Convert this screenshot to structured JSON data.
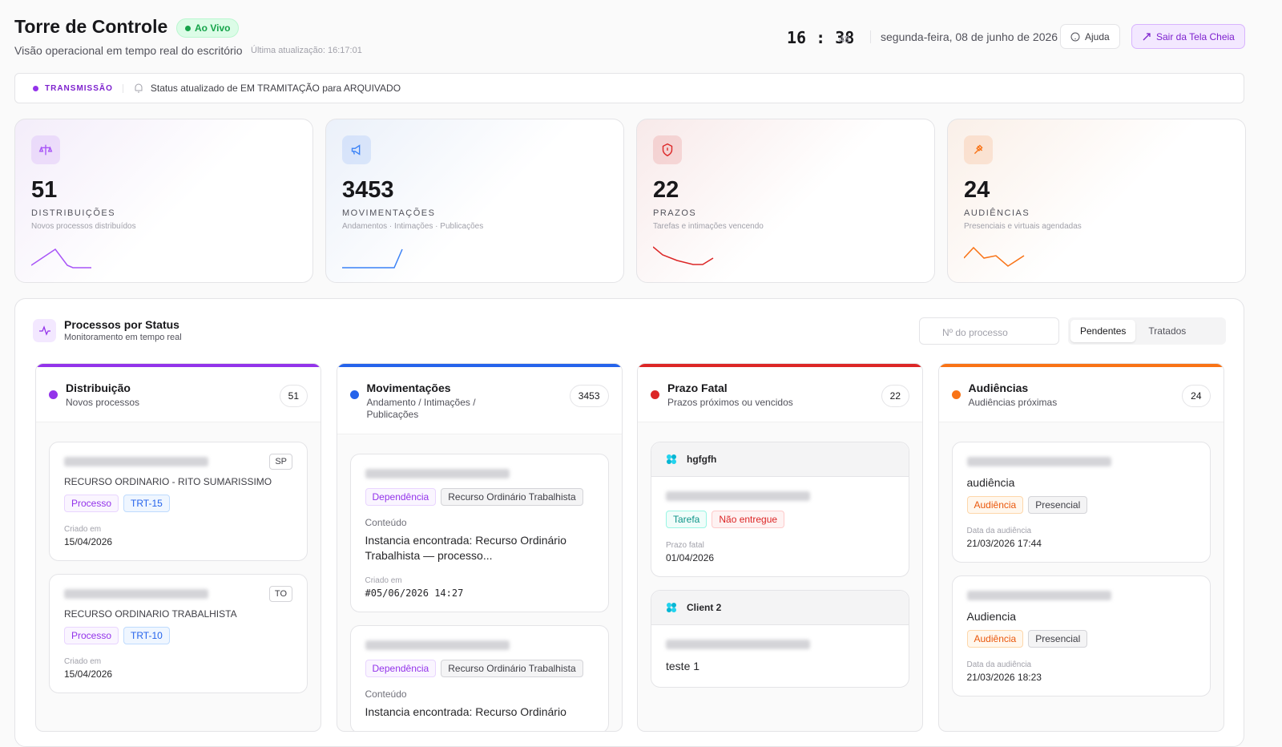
{
  "header": {
    "title": "Torre de Controle",
    "live": "Ao Vivo",
    "subtitle": "Visão operacional em tempo real do escritório",
    "last_update": "Última atualização: 16:17:01",
    "clock_hm": "16 : 38",
    "clock_s": "48",
    "date": "segunda-feira, 08 de junho de 2026",
    "help": "Ajuda",
    "exit_fullscreen": "Sair da Tela Cheia"
  },
  "ticker": {
    "label": "TRANSMISSÃO",
    "message": "Status atualizado de EM TRAMITAÇÃO para ARQUIVADO"
  },
  "stats": [
    {
      "value": 51,
      "label": "DISTRIBUIÇÕES",
      "desc": "Novos processos distribuídos",
      "color": "#a855f7"
    },
    {
      "value": 3453,
      "label": "MOVIMENTAÇÕES",
      "desc": "Andamentos · Intimações · Publicações",
      "color": "#3b82f6"
    },
    {
      "value": 22,
      "label": "PRAZOS",
      "desc": "Tarefas e intimações vencendo",
      "color": "#dc2626"
    },
    {
      "value": 24,
      "label": "AUDIÊNCIAS",
      "desc": "Presenciais e virtuais agendadas",
      "color": "#f97316"
    }
  ],
  "board": {
    "title": "Processos por Status",
    "subtitle": "Monitoramento em tempo real",
    "search_placeholder": "Nº do processo",
    "tabs": [
      "Pendentes",
      "Tratados"
    ],
    "columns": [
      {
        "title": "Distribuição",
        "subtitle": "Novos processos",
        "count": 51,
        "color": "#9333ea",
        "cards": [
          {
            "tag": "SP",
            "desc": "RECURSO ORDINARIO - RITO SUMARISSIMO",
            "badges": [
              "Processo",
              "TRT-15"
            ],
            "meta_label": "Criado em",
            "meta_value": "15/04/2026"
          },
          {
            "tag": "TO",
            "desc": "RECURSO ORDINARIO TRABALHISTA",
            "badges": [
              "Processo",
              "TRT-10"
            ],
            "meta_label": "Criado em",
            "meta_value": "15/04/2026"
          }
        ]
      },
      {
        "title": "Movimentações",
        "subtitle": "Andamento / Intimações / Publicações",
        "count": 3453,
        "color": "#2563eb",
        "cards": [
          {
            "badges": [
              "Dependência",
              "Recurso Ordinário Trabalhista"
            ],
            "content_label": "Conteúdo",
            "content": "Instancia encontrada: Recurso Ordinário Trabalhista — processo...",
            "meta_label": "Criado em",
            "meta_value": "#05/06/2026 14:27"
          },
          {
            "badges": [
              "Dependência",
              "Recurso Ordinário Trabalhista"
            ],
            "content_label": "Conteúdo",
            "content": "Instancia encontrada: Recurso Ordinário"
          }
        ]
      },
      {
        "title": "Prazo Fatal",
        "subtitle": "Prazos próximos ou vencidos",
        "count": 22,
        "color": "#dc2626",
        "cards": [
          {
            "client": "hgfgfh",
            "badges": [
              "Tarefa",
              "Não entregue"
            ],
            "meta_label": "Prazo fatal",
            "meta_value": "01/04/2026"
          },
          {
            "client": "Client 2",
            "content": "teste 1"
          }
        ]
      },
      {
        "title": "Audiências",
        "subtitle": "Audiências próximas",
        "count": 24,
        "color": "#f97316",
        "cards": [
          {
            "heading": "audiência",
            "badges": [
              "Audiência",
              "Presencial"
            ],
            "meta_label": "Data da audiência",
            "meta_value": "21/03/2026 17:44"
          },
          {
            "heading": "Audiencia",
            "badges": [
              "Audiência",
              "Presencial"
            ],
            "meta_label": "Data da audiência",
            "meta_value": "21/03/2026 18:23"
          }
        ]
      }
    ]
  }
}
